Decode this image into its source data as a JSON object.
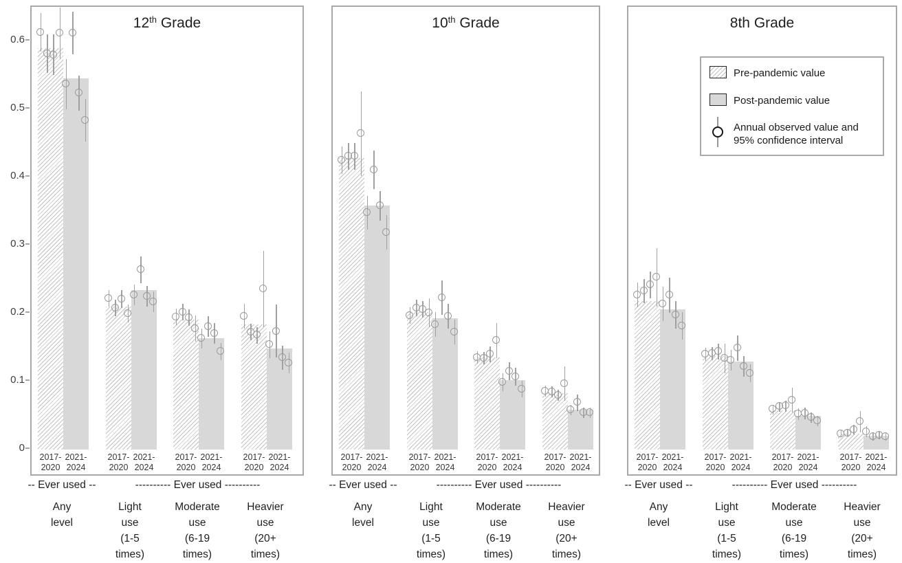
{
  "figure_colors": {
    "panel_border": "#a8a8a8",
    "post_bar_fill": "#d8d8d8",
    "pre_hatch_line": "#c2c2c2",
    "point_stroke": "#9a9a9a",
    "text": "#1f1f1f",
    "axis_text": "#3d3d3d"
  },
  "legend": {
    "pre_label": "Pre-pandemic value",
    "post_label": "Post-pandemic value",
    "annual_label_line1": "Annual observed value and",
    "annual_label_line2": "95% confidence interval"
  },
  "y_axis": {
    "tick_labels": [
      "0",
      "0.1",
      "0.2",
      "0.3",
      "0.4",
      "0.5",
      "0.6"
    ],
    "tick_values": [
      0,
      0.1,
      0.2,
      0.3,
      0.4,
      0.5,
      0.6
    ]
  },
  "x_period_labels": [
    [
      "2017-",
      "2020"
    ],
    [
      "2021-",
      "2024"
    ]
  ],
  "footers": {
    "any_span": "-- Ever used --",
    "other_span": "---------- Ever used ----------"
  },
  "category_labels": [
    [
      "Any",
      "level"
    ],
    [
      "Light",
      "use",
      "(1-5",
      "times)"
    ],
    [
      "Moderate",
      "use",
      "(6-19",
      "times)"
    ],
    [
      "Heavier",
      "use",
      "(20+",
      "times)"
    ]
  ],
  "chart_data": {
    "type": "bar",
    "subtype": "grouped bars with annual observed points and 95% CI whiskers",
    "ylim": [
      0,
      0.65
    ],
    "y_ticks": [
      0,
      0.1,
      0.2,
      0.3,
      0.4,
      0.5,
      0.6
    ],
    "grid": false,
    "categories": [
      "Any level (ever used)",
      "Light use (1-5 times)",
      "Moderate use (6-19 times)",
      "Heavier use (20+ times)"
    ],
    "periods": {
      "pre": {
        "label": "2017-2020",
        "years": [
          2017,
          2018,
          2019,
          2020
        ],
        "legend": "Pre-pandemic value"
      },
      "post": {
        "label": "2021-2024",
        "years": [
          2021,
          2022,
          2023,
          2024
        ],
        "legend": "Post-pandemic value"
      }
    },
    "panels": [
      {
        "title": "12th Grade",
        "title_parts": {
          "base": "12",
          "sup": "th",
          "rest": " Grade"
        },
        "groups": [
          {
            "category": "Any level",
            "pre_bar": 0.59,
            "post_bar": 0.545,
            "pre_points": [
              0.613,
              0.582,
              0.58,
              0.612
            ],
            "pre_ci": [
              0.028,
              0.028,
              0.03,
              0.038
            ],
            "post_points": [
              0.537,
              0.612,
              0.524,
              0.484
            ],
            "post_ci": [
              0.037,
              0.031,
              0.026,
              0.031
            ]
          },
          {
            "category": "Light use (1-5 times)",
            "pre_bar": 0.21,
            "post_bar": 0.234,
            "pre_points": [
              0.222,
              0.208,
              0.221,
              0.2
            ],
            "pre_ci": [
              0.012,
              0.012,
              0.013,
              0.013
            ],
            "post_points": [
              0.227,
              0.264,
              0.225,
              0.217
            ],
            "post_ci": [
              0.015,
              0.02,
              0.015,
              0.015
            ]
          },
          {
            "category": "Moderate use (6-19 times)",
            "pre_bar": 0.191,
            "post_bar": 0.164,
            "pre_points": [
              0.195,
              0.202,
              0.194,
              0.178
            ],
            "pre_ci": [
              0.012,
              0.012,
              0.012,
              0.019
            ],
            "post_points": [
              0.163,
              0.181,
              0.171,
              0.144
            ],
            "post_ci": [
              0.015,
              0.015,
              0.015,
              0.013
            ]
          },
          {
            "category": "Heavier use (20+ times)",
            "pre_bar": 0.184,
            "post_bar": 0.148,
            "pre_points": [
              0.196,
              0.173,
              0.168,
              0.236
            ],
            "pre_ci": [
              0.018,
              0.012,
              0.012,
              0.056
            ],
            "post_points": [
              0.154,
              0.174,
              0.135,
              0.127
            ],
            "post_ci": [
              0.02,
              0.039,
              0.018,
              0.015
            ]
          }
        ]
      },
      {
        "title": "10th Grade",
        "title_parts": {
          "base": "10",
          "sup": "th",
          "rest": " Grade"
        },
        "groups": [
          {
            "category": "Any level",
            "pre_bar": 0.428,
            "post_bar": 0.359,
            "pre_points": [
              0.425,
              0.431,
              0.431,
              0.464
            ],
            "pre_ci": [
              0.02,
              0.02,
              0.02,
              0.062
            ],
            "post_points": [
              0.348,
              0.411,
              0.358,
              0.319
            ],
            "post_ci": [
              0.025,
              0.028,
              0.022,
              0.025
            ]
          },
          {
            "category": "Light use (1-5 times)",
            "pre_bar": 0.202,
            "post_bar": 0.193,
            "pre_points": [
              0.197,
              0.208,
              0.206,
              0.201
            ],
            "pre_ci": [
              0.012,
              0.012,
              0.012,
              0.021
            ],
            "post_points": [
              0.184,
              0.223,
              0.196,
              0.173
            ],
            "post_ci": [
              0.018,
              0.025,
              0.018,
              0.018
            ]
          },
          {
            "category": "Moderate use (6-19 times)",
            "pre_bar": 0.135,
            "post_bar": 0.102,
            "pre_points": [
              0.135,
              0.134,
              0.14,
              0.16
            ],
            "pre_ci": [
              0.009,
              0.009,
              0.012,
              0.026
            ],
            "post_points": [
              0.099,
              0.115,
              0.107,
              0.089
            ],
            "post_ci": [
              0.013,
              0.013,
              0.013,
              0.012
            ]
          },
          {
            "category": "Heavier use (20+ times)",
            "pre_bar": 0.083,
            "post_bar": 0.059,
            "pre_points": [
              0.086,
              0.085,
              0.08,
              0.097
            ],
            "pre_ci": [
              0.008,
              0.008,
              0.008,
              0.025
            ],
            "post_points": [
              0.058,
              0.069,
              0.054,
              0.054
            ],
            "post_ci": [
              0.008,
              0.012,
              0.008,
              0.008
            ]
          }
        ]
      },
      {
        "title": "8th Grade",
        "title_parts": {
          "base": "8th",
          "sup": "",
          "rest": " Grade"
        },
        "groups": [
          {
            "category": "Any level",
            "pre_bar": 0.218,
            "post_bar": 0.206,
            "pre_points": [
              0.227,
              0.233,
              0.242,
              0.253
            ],
            "pre_ci": [
              0.018,
              0.018,
              0.02,
              0.043
            ],
            "post_points": [
              0.214,
              0.227,
              0.198,
              0.182
            ],
            "post_ci": [
              0.025,
              0.026,
              0.02,
              0.02
            ]
          },
          {
            "category": "Light use (1-5 times)",
            "pre_bar": 0.137,
            "post_bar": 0.129,
            "pre_points": [
              0.14,
              0.141,
              0.144,
              0.134
            ],
            "pre_ci": [
              0.01,
              0.01,
              0.012,
              0.022
            ],
            "post_points": [
              0.131,
              0.149,
              0.122,
              0.112
            ],
            "post_ci": [
              0.015,
              0.019,
              0.015,
              0.013
            ]
          },
          {
            "category": "Moderate use (6-19 times)",
            "pre_bar": 0.058,
            "post_bar": 0.049,
            "pre_points": [
              0.059,
              0.063,
              0.064,
              0.073
            ],
            "pre_ci": [
              0.007,
              0.007,
              0.008,
              0.018
            ],
            "post_points": [
              0.052,
              0.053,
              0.047,
              0.042
            ],
            "post_ci": [
              0.009,
              0.009,
              0.008,
              0.008
            ]
          },
          {
            "category": "Heavier use (20+ times)",
            "pre_bar": 0.023,
            "post_bar": 0.02,
            "pre_points": [
              0.023,
              0.024,
              0.029,
              0.041
            ],
            "pre_ci": [
              0.005,
              0.005,
              0.007,
              0.016
            ],
            "post_points": [
              0.026,
              0.019,
              0.021,
              0.019
            ],
            "post_ci": [
              0.008,
              0.006,
              0.006,
              0.006
            ]
          }
        ]
      }
    ]
  }
}
